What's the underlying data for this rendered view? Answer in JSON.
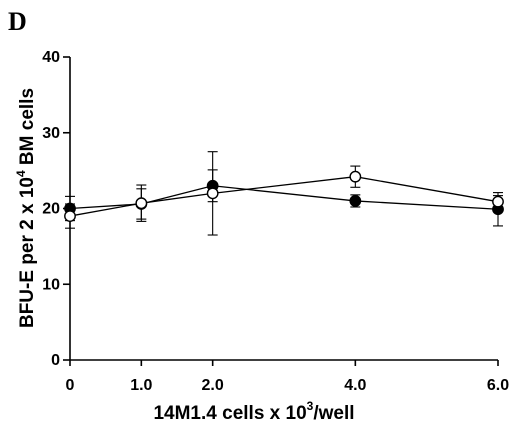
{
  "panel_label": "D",
  "chart_data": {
    "type": "line",
    "xlabel_main": "14M1.4 cells x 10",
    "xlabel_exp": "3",
    "xlabel_tail": "/well",
    "ylabel_main": "BFU-E per 2 x 10",
    "ylabel_exp": "4",
    "ylabel_tail": " BM cells",
    "x": [
      0,
      1,
      2,
      4,
      6
    ],
    "x_tick_labels": [
      "0",
      "1.0",
      "2.0",
      "4.0",
      "6.0"
    ],
    "y_ticks": [
      0,
      10,
      20,
      30,
      40
    ],
    "ylim": [
      0,
      40
    ],
    "grid": false,
    "series": [
      {
        "marker": "filled-circle",
        "values": [
          20.0,
          20.6,
          23.0,
          21.0,
          19.9
        ],
        "error": [
          1.6,
          2.0,
          2.1,
          0.8,
          2.2
        ]
      },
      {
        "marker": "open-circle",
        "values": [
          19.0,
          20.7,
          22.0,
          24.2,
          20.9
        ],
        "error": [
          1.6,
          2.4,
          5.5,
          1.4,
          0.8
        ]
      }
    ]
  }
}
